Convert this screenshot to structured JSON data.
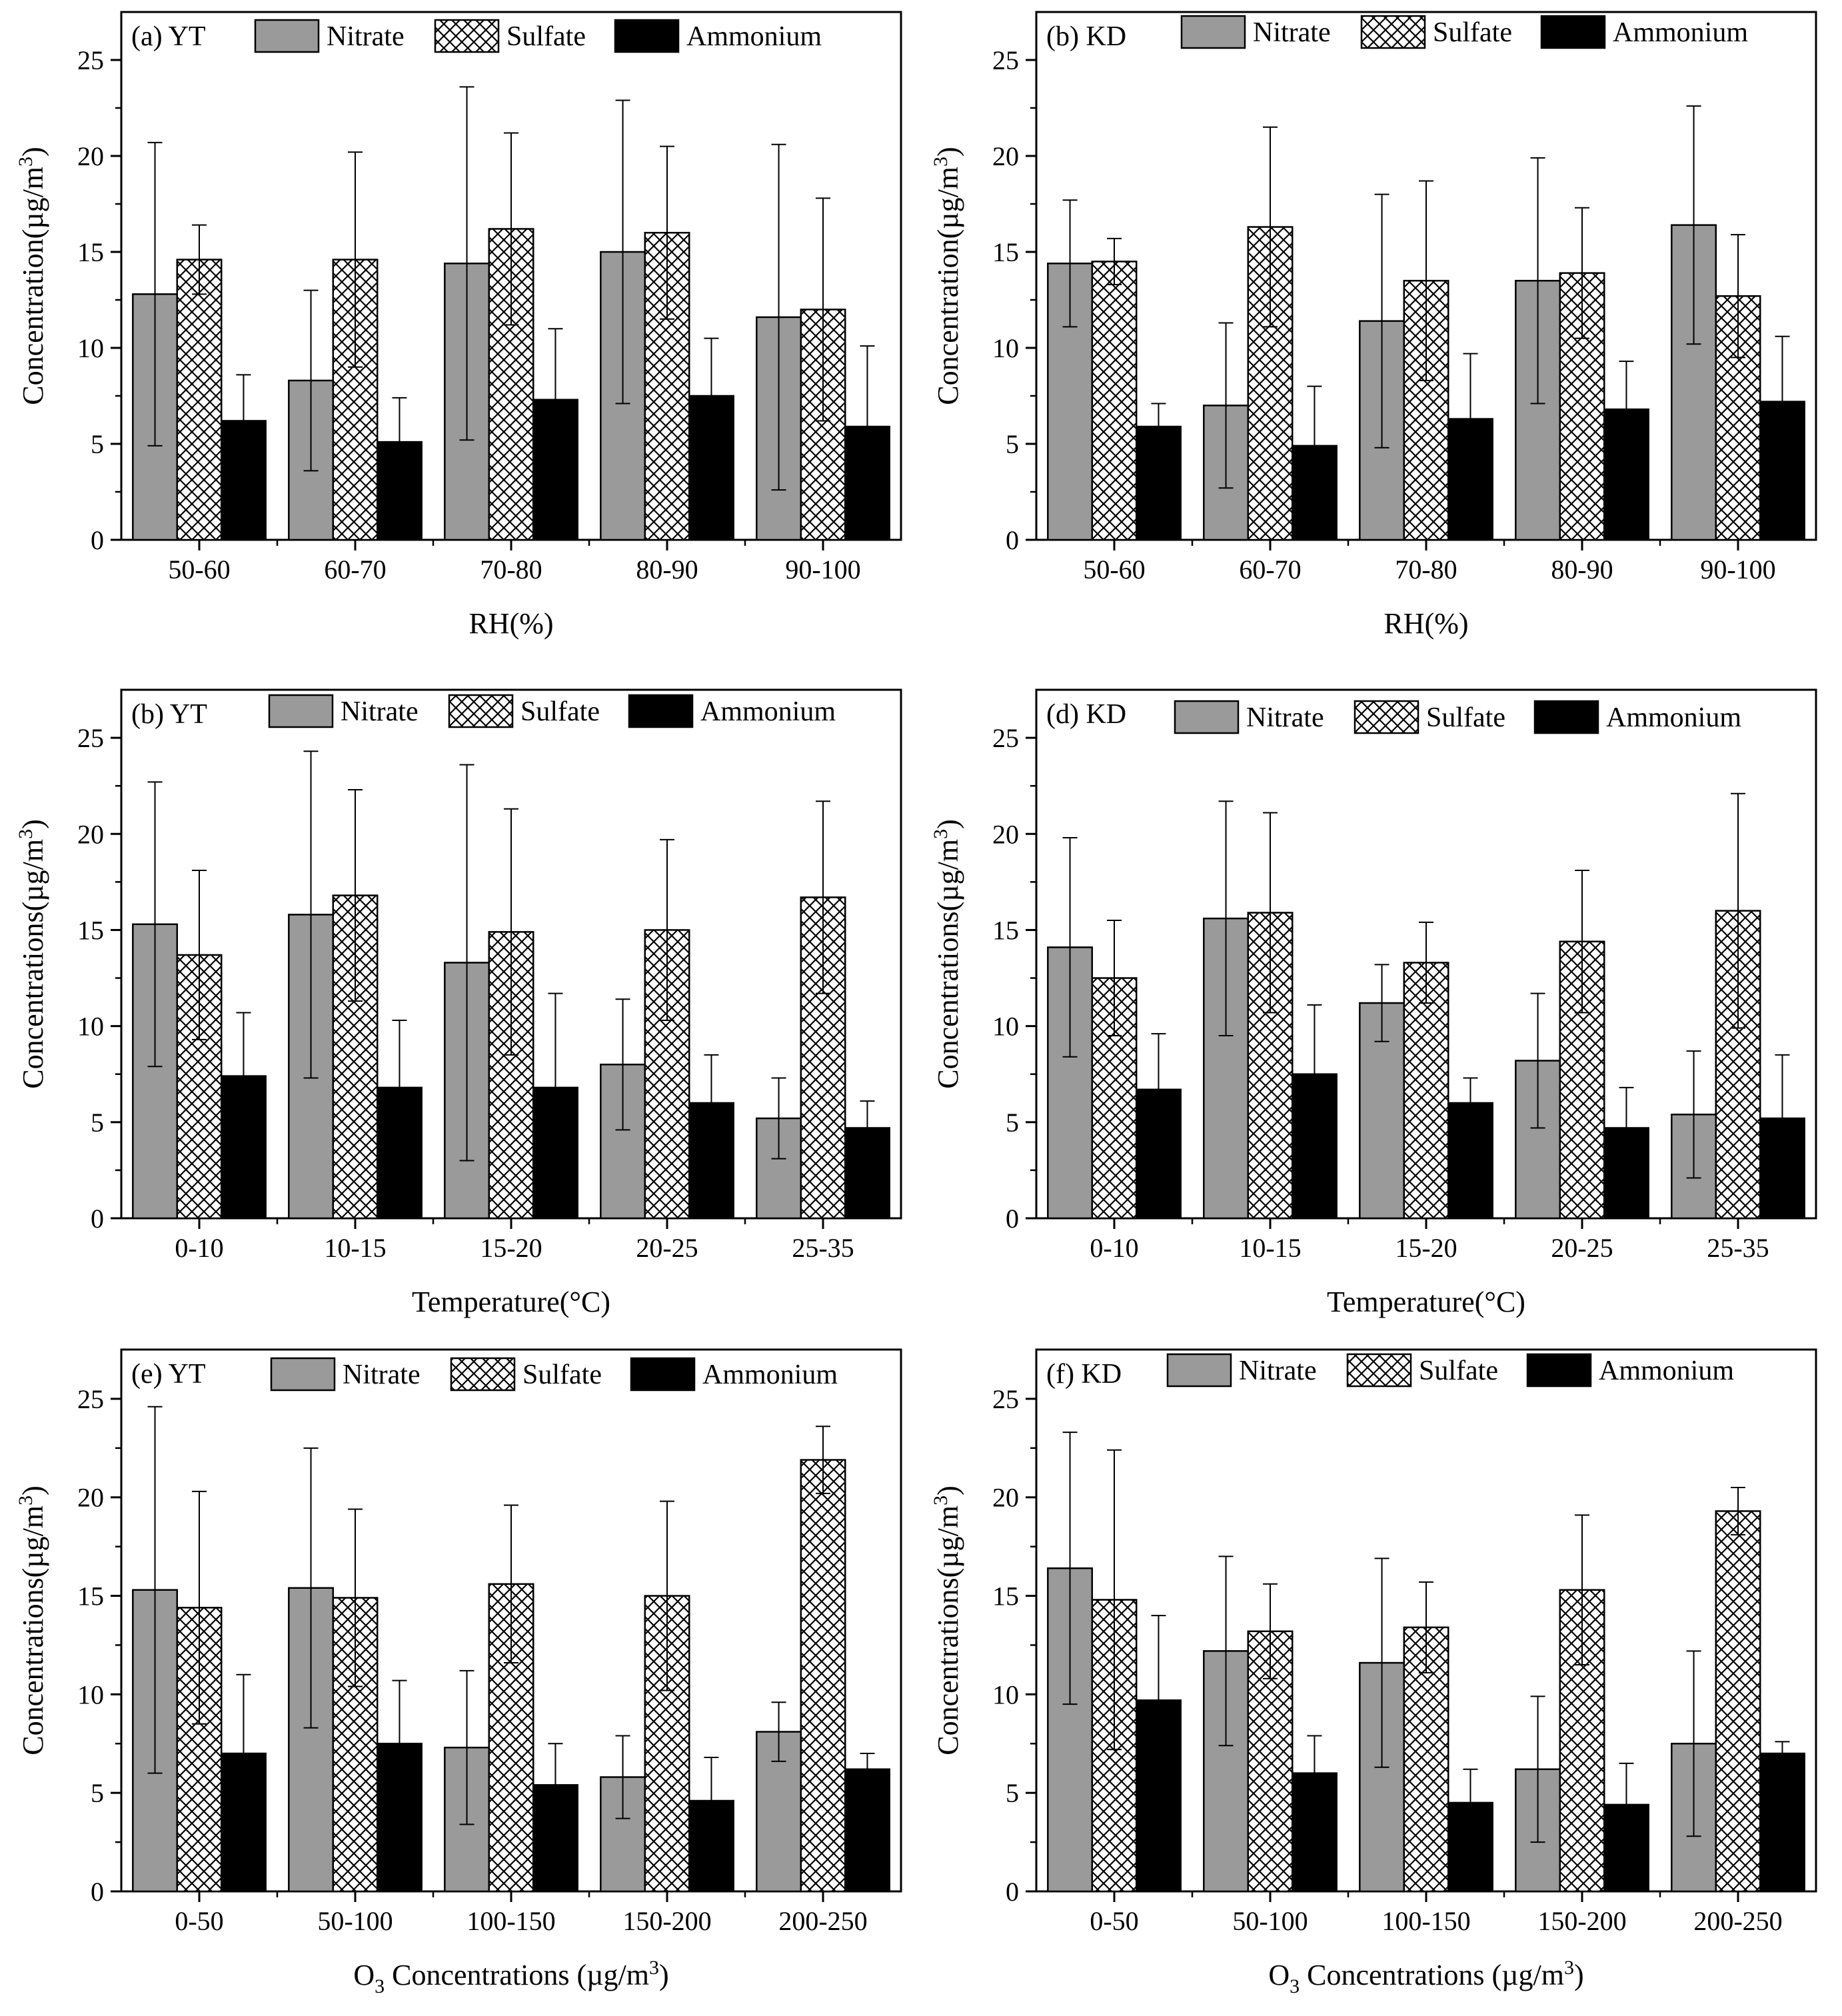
{
  "legend_labels": [
    "Nitrate",
    "Sulfate",
    "Ammonium"
  ],
  "chart_data": [
    {
      "type": "bar",
      "panel_label": "(a) YT",
      "xlabel": "RH(%)",
      "ylabel": "Concentration(µg/m³)",
      "ylabel_main": "Concentration(µg/m",
      "ylabel_sup": "3",
      "ylabel_tail": ")",
      "xlabel_sub": "",
      "xlabel_tail": "",
      "xlabel_sup": "",
      "xlabel_end": "",
      "categories": [
        "50-60",
        "60-70",
        "70-80",
        "80-90",
        "90-100"
      ],
      "ylim": [
        0,
        27.5
      ],
      "yticks": [
        0,
        5,
        10,
        15,
        20,
        25
      ],
      "series": [
        {
          "name": "Nitrate",
          "values": [
            12.8,
            8.3,
            14.4,
            15.0,
            11.6
          ],
          "errors": [
            7.9,
            4.7,
            9.2,
            7.9,
            9.0
          ]
        },
        {
          "name": "Sulfate",
          "values": [
            14.6,
            14.6,
            16.2,
            16.0,
            12.0
          ],
          "errors": [
            1.8,
            5.6,
            5.0,
            4.5,
            5.8
          ]
        },
        {
          "name": "Ammonium",
          "values": [
            6.2,
            5.1,
            7.3,
            7.5,
            5.9
          ],
          "errors": [
            2.4,
            2.3,
            3.7,
            3.0,
            4.2
          ]
        }
      ]
    },
    {
      "type": "bar",
      "panel_label": "(b)  KD",
      "xlabel": "RH(%)",
      "ylabel": "Concentration(µg/m³)",
      "ylabel_main": "Concentration(µg/m",
      "ylabel_sup": "3",
      "ylabel_tail": ")",
      "xlabel_sub": "",
      "xlabel_tail": "",
      "xlabel_sup": "",
      "xlabel_end": "",
      "categories": [
        "50-60",
        "60-70",
        "70-80",
        "80-90",
        "90-100"
      ],
      "ylim": [
        0,
        27.5
      ],
      "yticks": [
        0,
        5,
        10,
        15,
        20,
        25
      ],
      "series": [
        {
          "name": "Nitrate",
          "values": [
            14.4,
            7.0,
            11.4,
            13.5,
            16.4
          ],
          "errors": [
            3.3,
            4.3,
            6.6,
            6.4,
            6.2
          ]
        },
        {
          "name": "Sulfate",
          "values": [
            14.5,
            16.3,
            13.5,
            13.9,
            12.7
          ],
          "errors": [
            1.2,
            5.2,
            5.2,
            3.4,
            3.2
          ]
        },
        {
          "name": "Ammonium",
          "values": [
            5.9,
            4.9,
            6.3,
            6.8,
            7.2
          ],
          "errors": [
            1.2,
            3.1,
            3.4,
            2.5,
            3.4
          ]
        }
      ]
    },
    {
      "type": "bar",
      "panel_label": "(b) YT",
      "xlabel": "Temperature(°C)",
      "ylabel": "Concentrations(µg/m³)",
      "ylabel_main": "Concentrations(µg/m",
      "ylabel_sup": "3",
      "ylabel_tail": ")",
      "xlabel_sub": "",
      "xlabel_tail": "",
      "xlabel_sup": "",
      "xlabel_end": "",
      "categories": [
        "0-10",
        "10-15",
        "15-20",
        "20-25",
        "25-35"
      ],
      "ylim": [
        0,
        27.5
      ],
      "yticks": [
        0,
        5,
        10,
        15,
        20,
        25
      ],
      "series": [
        {
          "name": "Nitrate",
          "values": [
            15.3,
            15.8,
            13.3,
            8.0,
            5.2
          ],
          "errors": [
            7.4,
            8.5,
            10.3,
            3.4,
            2.1
          ]
        },
        {
          "name": "Sulfate",
          "values": [
            13.7,
            16.8,
            14.9,
            15.0,
            16.7
          ],
          "errors": [
            4.4,
            5.5,
            6.4,
            4.7,
            5.0
          ]
        },
        {
          "name": "Ammonium",
          "values": [
            7.4,
            6.8,
            6.8,
            6.0,
            4.7
          ],
          "errors": [
            3.3,
            3.5,
            4.9,
            2.5,
            1.4
          ]
        }
      ]
    },
    {
      "type": "bar",
      "panel_label": "(d)  KD",
      "xlabel": "Temperature(°C)",
      "ylabel": "Concentrations(µg/m³)",
      "ylabel_main": "Concentrations(µg/m",
      "ylabel_sup": "3",
      "ylabel_tail": ")",
      "xlabel_sub": "",
      "xlabel_tail": "",
      "xlabel_sup": "",
      "xlabel_end": "",
      "categories": [
        "0-10",
        "10-15",
        "15-20",
        "20-25",
        "25-35"
      ],
      "ylim": [
        0,
        27.5
      ],
      "yticks": [
        0,
        5,
        10,
        15,
        20,
        25
      ],
      "series": [
        {
          "name": "Nitrate",
          "values": [
            14.1,
            15.6,
            11.2,
            8.2,
            5.4
          ],
          "errors": [
            5.7,
            6.1,
            2.0,
            3.5,
            3.3
          ]
        },
        {
          "name": "Sulfate",
          "values": [
            12.5,
            15.9,
            13.3,
            14.4,
            16.0
          ],
          "errors": [
            3.0,
            5.2,
            2.1,
            3.7,
            6.1
          ]
        },
        {
          "name": "Ammonium",
          "values": [
            6.7,
            7.5,
            6.0,
            4.7,
            5.2
          ],
          "errors": [
            2.9,
            3.6,
            1.3,
            2.1,
            3.3
          ]
        }
      ]
    },
    {
      "type": "bar",
      "panel_label": "(e)  YT",
      "xlabel": "O₃ Concentrations (µg/m³)",
      "ylabel": "Concentrations(µg/m³)",
      "ylabel_main": "Concentrations(µg/m",
      "ylabel_sup": "3",
      "ylabel_tail": ")",
      "xlabel_main": "O",
      "xlabel_sub": "3",
      "xlabel_tail": " Concentrations (µg/m",
      "xlabel_sup": "3",
      "xlabel_end": ")",
      "categories": [
        "0-50",
        "50-100",
        "100-150",
        "150-200",
        "200-250"
      ],
      "ylim": [
        0,
        27.5
      ],
      "yticks": [
        0,
        5,
        10,
        15,
        20,
        25
      ],
      "series": [
        {
          "name": "Nitrate",
          "values": [
            15.3,
            15.4,
            7.3,
            5.8,
            8.1
          ],
          "errors": [
            9.3,
            7.1,
            3.9,
            2.1,
            1.5
          ]
        },
        {
          "name": "Sulfate",
          "values": [
            14.4,
            14.9,
            15.6,
            15.0,
            21.9
          ],
          "errors": [
            5.9,
            4.5,
            4.0,
            4.8,
            1.7
          ]
        },
        {
          "name": "Ammonium",
          "values": [
            7.0,
            7.5,
            5.4,
            4.6,
            6.2
          ],
          "errors": [
            4.0,
            3.2,
            2.1,
            2.2,
            0.8
          ]
        }
      ]
    },
    {
      "type": "bar",
      "panel_label": "(f)  KD",
      "xlabel": "O₃ Concentrations (µg/m³)",
      "ylabel": "Concentrations(µg/m³)",
      "ylabel_main": "Concentrations(µg/m",
      "ylabel_sup": "3",
      "ylabel_tail": ")",
      "xlabel_main": "O",
      "xlabel_sub": "3",
      "xlabel_tail": " Concentrations (µg/m",
      "xlabel_sup": "3",
      "xlabel_end": ")",
      "categories": [
        "0-50",
        "50-100",
        "100-150",
        "150-200",
        "200-250"
      ],
      "ylim": [
        0,
        27.5
      ],
      "yticks": [
        0,
        5,
        10,
        15,
        20,
        25
      ],
      "series": [
        {
          "name": "Nitrate",
          "values": [
            16.4,
            12.2,
            11.6,
            6.2,
            7.5
          ],
          "errors": [
            6.9,
            4.8,
            5.3,
            3.7,
            4.7
          ]
        },
        {
          "name": "Sulfate",
          "values": [
            14.8,
            13.2,
            13.4,
            15.3,
            19.3
          ],
          "errors": [
            7.6,
            2.4,
            2.3,
            3.8,
            1.2
          ]
        },
        {
          "name": "Ammonium",
          "values": [
            9.7,
            6.0,
            4.5,
            4.4,
            7.0
          ],
          "errors": [
            4.3,
            1.9,
            1.7,
            2.1,
            0.6
          ]
        }
      ]
    }
  ]
}
